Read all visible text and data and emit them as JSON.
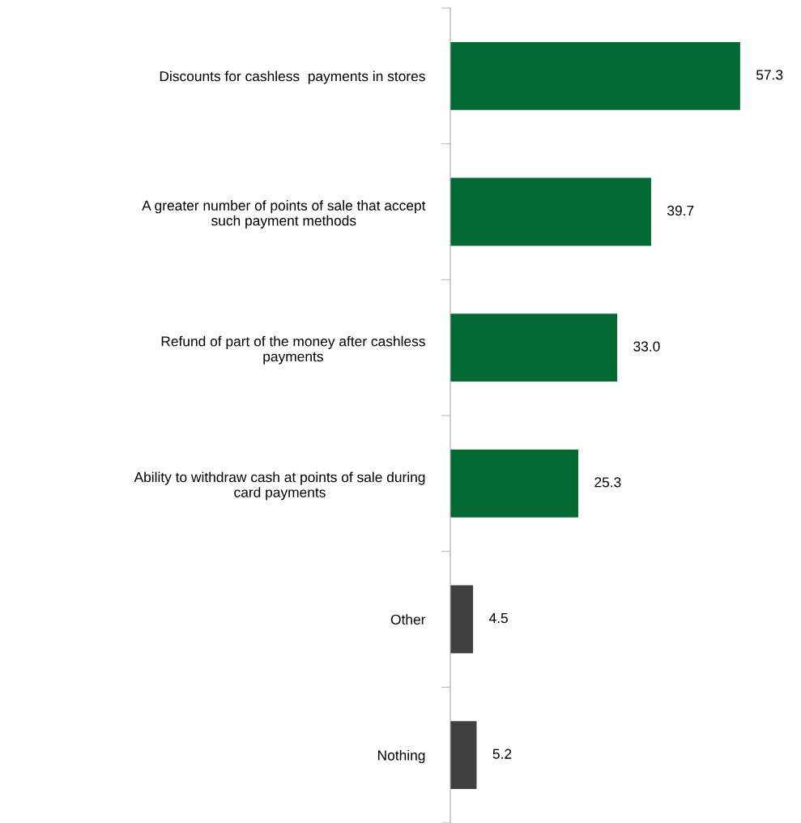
{
  "chart_data": {
    "type": "bar",
    "orientation": "horizontal",
    "categories": [
      "Discounts for cashless  payments in stores",
      "A greater number of points of sale that accept\nsuch payment methods",
      "Refund of part of the money after cashless\npayments",
      "Ability to withdraw cash at points of sale during\ncard payments",
      "Other",
      "Nothing"
    ],
    "values": [
      57.3,
      39.7,
      33.0,
      25.3,
      4.5,
      5.2
    ],
    "value_labels": [
      "57.3",
      "39.7",
      "33.0",
      "25.3",
      "4.5",
      "5.2"
    ],
    "colors": [
      "#006a32",
      "#006a32",
      "#006a32",
      "#006a32",
      "#404040",
      "#404040"
    ]
  }
}
